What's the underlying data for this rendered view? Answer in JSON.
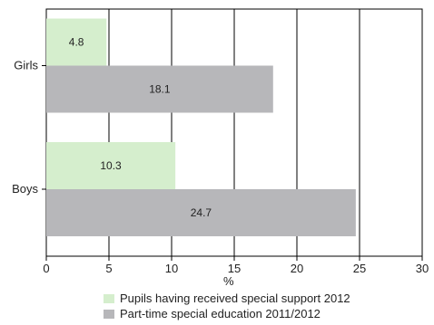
{
  "chart_data": {
    "type": "bar",
    "orientation": "horizontal",
    "categories": [
      "Girls",
      "Boys"
    ],
    "series": [
      {
        "name": "Pupils having received special support 2012",
        "values": [
          4.8,
          10.3
        ],
        "color": "#d5eecd"
      },
      {
        "name": "Part-time special education 2011/2012",
        "values": [
          18.1,
          24.7
        ],
        "color": "#b7b7ba"
      }
    ],
    "xlabel": "%",
    "xlim": [
      0,
      30
    ],
    "xticks": [
      0,
      5,
      10,
      15,
      20,
      25,
      30
    ],
    "grid": "vertical",
    "legend_position": "bottom"
  }
}
